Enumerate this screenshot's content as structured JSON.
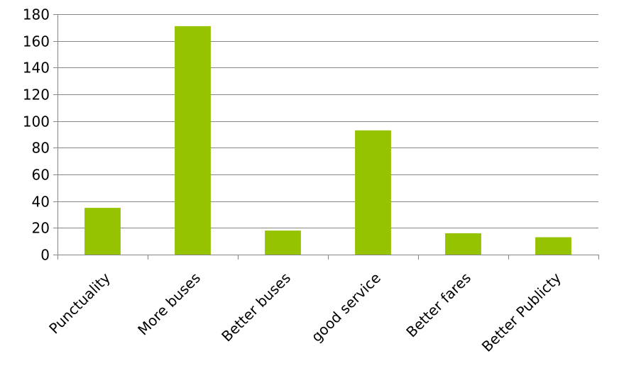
{
  "chart_data": {
    "type": "bar",
    "title": "",
    "xlabel": "",
    "ylabel": "",
    "categories": [
      "Punctuality",
      "More buses",
      "Better buses",
      "good service",
      "Better fares",
      "Better Publicty"
    ],
    "values": [
      35,
      171,
      18,
      93,
      16,
      13
    ],
    "ylim": [
      0,
      180
    ],
    "yticks": [
      0,
      20,
      40,
      60,
      80,
      100,
      120,
      140,
      160,
      180
    ],
    "grid": true,
    "legend": "none",
    "bar_color": "#96C300"
  }
}
